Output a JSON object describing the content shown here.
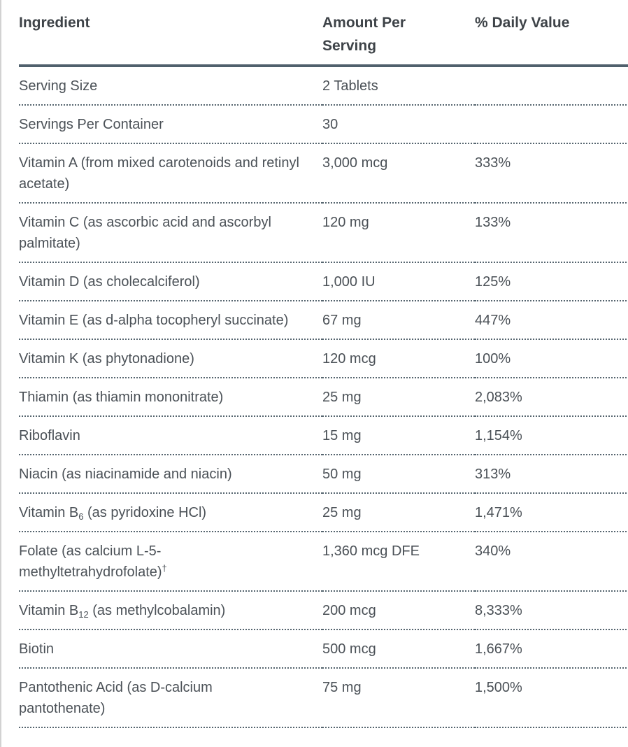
{
  "colors": {
    "header_rule": "#50606c",
    "row_rule_dotted": "#56656f",
    "header_text": "#3e4348",
    "body_text": "#4b5157",
    "page_edge": "#d2d2d2"
  },
  "table": {
    "columns": [
      "Ingredient",
      "Amount Per Serving",
      "% Daily Value"
    ],
    "rows": [
      {
        "ingredient": [
          {
            "t": "Serving Size"
          }
        ],
        "amount": "2 Tablets",
        "daily_value": ""
      },
      {
        "ingredient": [
          {
            "t": "Servings Per Container"
          }
        ],
        "amount": "30",
        "daily_value": ""
      },
      {
        "ingredient": [
          {
            "t": "Vitamin A (from mixed carotenoids and retinyl acetate)"
          }
        ],
        "amount": "3,000 mcg",
        "daily_value": "333%"
      },
      {
        "ingredient": [
          {
            "t": "Vitamin C (as ascorbic acid and ascorbyl palmitate)"
          }
        ],
        "amount": "120 mg",
        "daily_value": "133%"
      },
      {
        "ingredient": [
          {
            "t": "Vitamin D (as cholecalciferol)"
          }
        ],
        "amount": "1,000 IU",
        "daily_value": "125%"
      },
      {
        "ingredient": [
          {
            "t": "Vitamin E (as d-alpha tocopheryl succinate)"
          }
        ],
        "amount": "67 mg",
        "daily_value": "447%"
      },
      {
        "ingredient": [
          {
            "t": "Vitamin K (as phytonadione)"
          }
        ],
        "amount": "120 mcg",
        "daily_value": "100%"
      },
      {
        "ingredient": [
          {
            "t": "Thiamin (as thiamin mononitrate)"
          }
        ],
        "amount": "25 mg",
        "daily_value": "2,083%"
      },
      {
        "ingredient": [
          {
            "t": "Riboflavin"
          }
        ],
        "amount": "15 mg",
        "daily_value": "1,154%"
      },
      {
        "ingredient": [
          {
            "t": "Niacin (as niacinamide and niacin)"
          }
        ],
        "amount": "50 mg",
        "daily_value": "313%"
      },
      {
        "ingredient": [
          {
            "t": "Vitamin B"
          },
          {
            "sub": "6"
          },
          {
            "t": " (as pyridoxine HCl)"
          }
        ],
        "amount": "25 mg",
        "daily_value": "1,471%"
      },
      {
        "ingredient": [
          {
            "t": "Folate (as calcium L-5-methyltetrahydrofolate)"
          },
          {
            "sup": "†"
          }
        ],
        "amount": "1,360 mcg DFE",
        "daily_value": "340%"
      },
      {
        "ingredient": [
          {
            "t": "Vitamin B"
          },
          {
            "sub": "12"
          },
          {
            "t": " (as methylcobalamin)"
          }
        ],
        "amount": "200 mcg",
        "daily_value": "8,333%"
      },
      {
        "ingredient": [
          {
            "t": "Biotin"
          }
        ],
        "amount": "500 mcg",
        "daily_value": "1,667%"
      },
      {
        "ingredient": [
          {
            "t": "Pantothenic Acid (as D-calcium pantothenate)"
          }
        ],
        "amount": "75 mg",
        "daily_value": "1,500%"
      }
    ]
  }
}
